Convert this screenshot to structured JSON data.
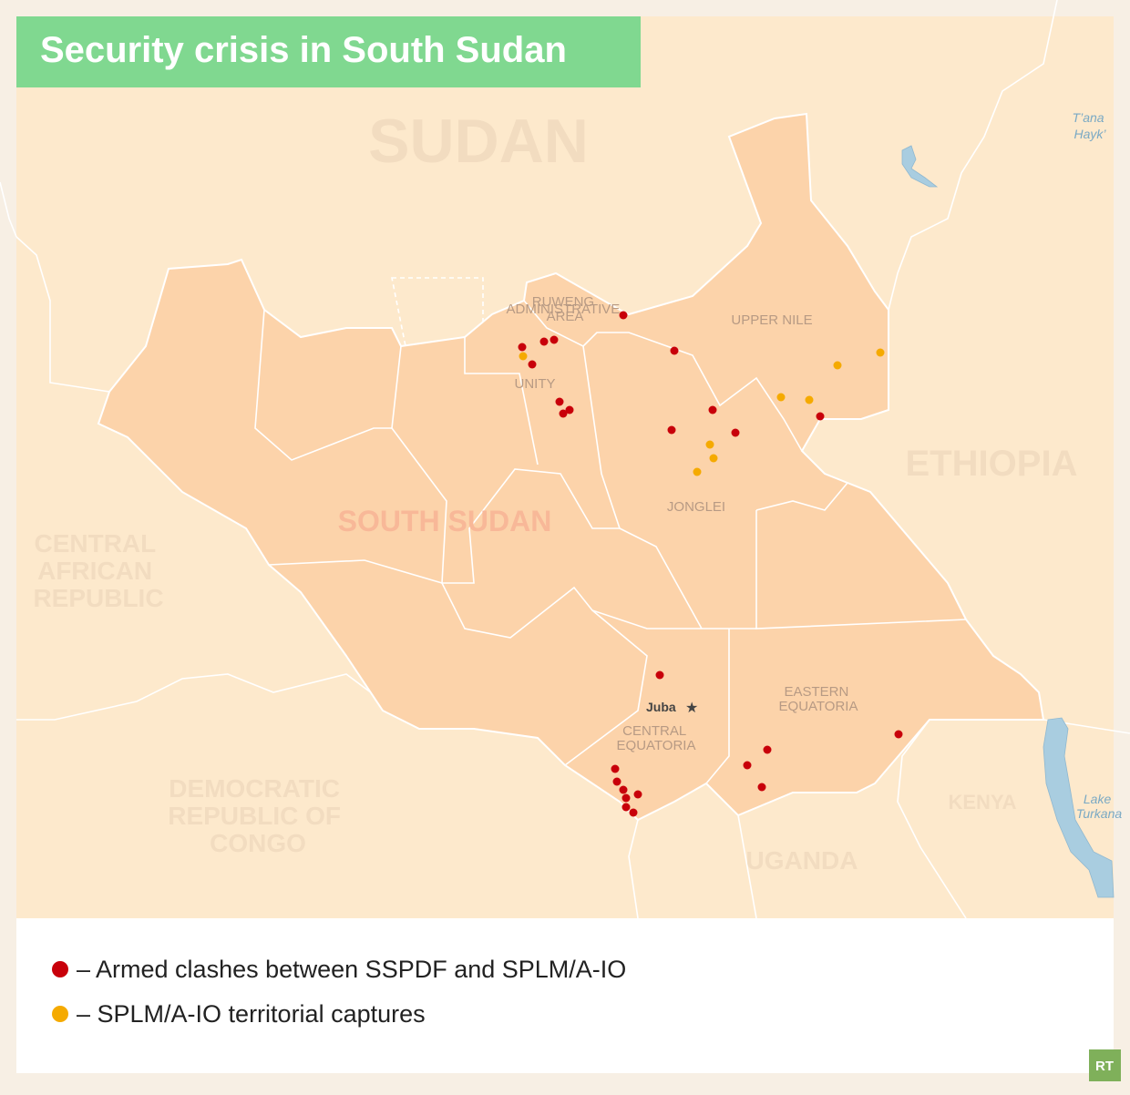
{
  "title": "Security crisis in South Sudan",
  "countries": [
    [
      "SUDAN"
    ],
    [
      "SOUTH SUDAN"
    ],
    [
      "ETHIOPIA"
    ],
    [
      "CENTRAL",
      "AFRICAN",
      "REPUBLIC"
    ],
    [
      "DEMOCRATIC",
      "REPUBLIC OF",
      "CONGO"
    ],
    [
      "KENYA"
    ],
    [
      "UGANDA"
    ]
  ],
  "regions": [
    [
      "UPPER NILE"
    ],
    [
      "UNITY"
    ],
    [
      "JONGLEI"
    ],
    [
      "EASTERN",
      "EQUATORIA"
    ],
    [
      "CENTRAL",
      "EQUATORIA"
    ],
    [
      "RUWENG",
      "ADMINISTRATIVE",
      "AREA"
    ]
  ],
  "city": "Juba",
  "lakes": [
    [
      "T’ana",
      "Hayk’"
    ],
    [
      "Lake",
      "Turkana"
    ]
  ],
  "legend": [
    {
      "label": "– Armed clashes between SSPDF and SPLM/A-IO",
      "color": "#c8000a"
    },
    {
      "label": "– SPLM/A-IO territorial captures",
      "color": "#f5aa00"
    }
  ],
  "logo": "RT"
}
